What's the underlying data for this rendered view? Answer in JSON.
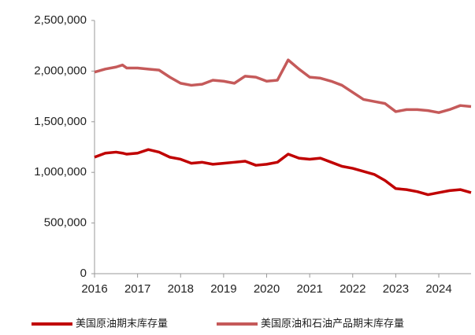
{
  "chart_data": {
    "type": "line",
    "x": [
      2016.0,
      2016.25,
      2016.5,
      2016.65,
      2016.75,
      2017.0,
      2017.25,
      2017.5,
      2017.75,
      2018.0,
      2018.25,
      2018.5,
      2018.75,
      2019.0,
      2019.25,
      2019.5,
      2019.75,
      2020.0,
      2020.25,
      2020.5,
      2020.75,
      2021.0,
      2021.25,
      2021.5,
      2021.75,
      2022.0,
      2022.25,
      2022.5,
      2022.75,
      2023.0,
      2023.25,
      2023.5,
      2023.75,
      2024.0,
      2024.25,
      2024.5,
      2024.75
    ],
    "series": [
      {
        "name": "美国原油期末库存量",
        "color": "#c00000",
        "values": [
          1150000,
          1190000,
          1200000,
          1190000,
          1180000,
          1190000,
          1225000,
          1200000,
          1150000,
          1130000,
          1090000,
          1100000,
          1080000,
          1090000,
          1100000,
          1110000,
          1070000,
          1080000,
          1100000,
          1180000,
          1140000,
          1130000,
          1140000,
          1100000,
          1060000,
          1040000,
          1010000,
          980000,
          920000,
          840000,
          830000,
          810000,
          780000,
          800000,
          820000,
          830000,
          800000
        ]
      },
      {
        "name": "美国原油和石油产品期末库存量",
        "color": "#c55a5a",
        "values": [
          1990000,
          2020000,
          2040000,
          2060000,
          2030000,
          2030000,
          2020000,
          2010000,
          1940000,
          1880000,
          1860000,
          1870000,
          1910000,
          1900000,
          1880000,
          1950000,
          1940000,
          1900000,
          1910000,
          2110000,
          2020000,
          1940000,
          1930000,
          1900000,
          1860000,
          1790000,
          1720000,
          1700000,
          1680000,
          1600000,
          1620000,
          1620000,
          1610000,
          1590000,
          1620000,
          1660000,
          1650000
        ]
      }
    ],
    "xlim": [
      2016,
      2024.75
    ],
    "xticks": [
      2016,
      2017,
      2018,
      2019,
      2020,
      2021,
      2022,
      2023,
      2024
    ],
    "ylim": [
      0,
      2500000
    ],
    "yticks": [
      0,
      {
        "value": 500000,
        "label": "500,000"
      },
      {
        "value": 1000000,
        "label": "1,000,000"
      },
      {
        "value": 1500000,
        "label": "1,500,000"
      },
      {
        "value": 2000000,
        "label": "2,000,000"
      },
      {
        "value": 2500000,
        "label": "2,500,000"
      }
    ],
    "legend": "bottom"
  }
}
